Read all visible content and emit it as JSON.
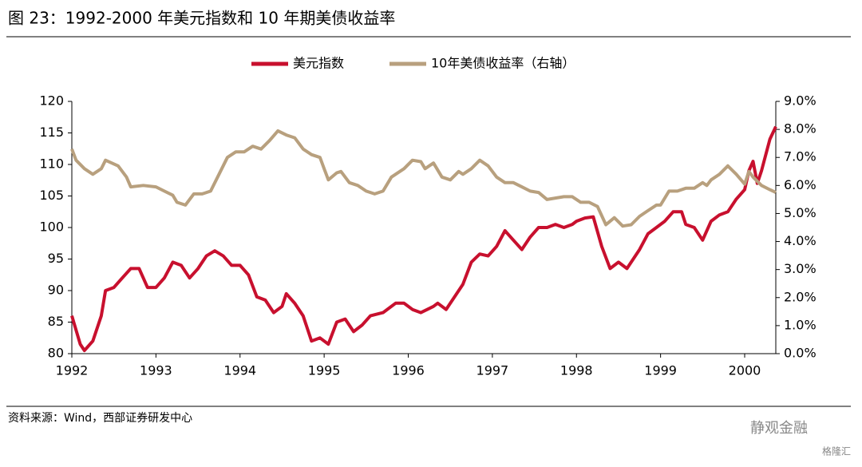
{
  "chart_data": {
    "type": "line",
    "title": "图 23：1992-2000 年美元指数和 10 年期美债收益率",
    "source": "资料来源：Wind，西部证券研发中心",
    "watermark": [
      "静观金融",
      "格隆汇"
    ],
    "xlim": [
      1992,
      2000.37
    ],
    "xticks": [
      1992,
      1993,
      1994,
      1995,
      1996,
      1997,
      1998,
      1999,
      2000
    ],
    "ylim": [
      80,
      120
    ],
    "yticks": [
      80,
      85,
      90,
      95,
      100,
      105,
      110,
      115,
      120
    ],
    "y2lim": [
      0,
      9
    ],
    "y2ticks": [
      {
        "value": 0,
        "label": "0.0%"
      },
      {
        "value": 1,
        "label": "1.0%"
      },
      {
        "value": 2,
        "label": "2.0%"
      },
      {
        "value": 3,
        "label": "3.0%"
      },
      {
        "value": 4,
        "label": "4.0%"
      },
      {
        "value": 5,
        "label": "5.0%"
      },
      {
        "value": 6,
        "label": "6.0%"
      },
      {
        "value": 7,
        "label": "7.0%"
      },
      {
        "value": 8,
        "label": "8.0%"
      },
      {
        "value": 9,
        "label": "9.0%"
      }
    ],
    "series": [
      {
        "name": "美元指数",
        "color": "#c8102e",
        "axis": "y",
        "x": [
          1992.0,
          1992.1,
          1992.15,
          1992.25,
          1992.35,
          1992.4,
          1992.5,
          1992.6,
          1992.7,
          1992.8,
          1992.9,
          1993.0,
          1993.1,
          1993.2,
          1993.3,
          1993.4,
          1993.5,
          1993.6,
          1993.7,
          1993.8,
          1993.9,
          1994.0,
          1994.1,
          1994.2,
          1994.3,
          1994.4,
          1994.5,
          1994.55,
          1994.65,
          1994.75,
          1994.85,
          1994.95,
          1995.05,
          1995.15,
          1995.25,
          1995.35,
          1995.45,
          1995.55,
          1995.7,
          1995.85,
          1995.95,
          1996.05,
          1996.15,
          1996.3,
          1996.35,
          1996.45,
          1996.55,
          1996.65,
          1996.75,
          1996.85,
          1996.95,
          1997.05,
          1997.15,
          1997.25,
          1997.35,
          1997.45,
          1997.55,
          1997.65,
          1997.75,
          1997.85,
          1997.95,
          1998.0,
          1998.1,
          1998.2,
          1998.3,
          1998.4,
          1998.5,
          1998.6,
          1998.75,
          1998.85,
          1998.95,
          1999.05,
          1999.15,
          1999.25,
          1999.3,
          1999.4,
          1999.5,
          1999.6,
          1999.7,
          1999.8,
          1999.9,
          2000.0,
          2000.05,
          2000.1,
          2000.15,
          2000.2,
          2000.3,
          2000.37
        ],
        "values": [
          86,
          81.5,
          80.5,
          82,
          86,
          90,
          90.5,
          92,
          93.5,
          93.5,
          90.5,
          90.5,
          92,
          94.5,
          94,
          92,
          93.5,
          95.5,
          96.3,
          95.5,
          94,
          94,
          92.5,
          89,
          88.5,
          86.5,
          87.5,
          89.5,
          88,
          86,
          82,
          82.5,
          81.5,
          85,
          85.5,
          83.5,
          84.5,
          86,
          86.5,
          88,
          88,
          87,
          86.5,
          87.5,
          88,
          87,
          89,
          91,
          94.5,
          95.8,
          95.5,
          97,
          99.5,
          98,
          96.5,
          98.5,
          100,
          100,
          100.5,
          100,
          100.5,
          101,
          101.5,
          101.7,
          97,
          93.5,
          94.5,
          93.5,
          96.5,
          99,
          100,
          101,
          102.5,
          102.5,
          100.5,
          100,
          98,
          101,
          102,
          102.5,
          104.5,
          106,
          109,
          110.5,
          107,
          109,
          114,
          116
        ]
      },
      {
        "name": "10年美债收益率（右轴）",
        "color": "#b8a07e",
        "axis": "y2",
        "x": [
          1992.0,
          1992.05,
          1992.15,
          1992.25,
          1992.35,
          1992.4,
          1992.55,
          1992.65,
          1992.7,
          1992.85,
          1993.0,
          1993.1,
          1993.2,
          1993.25,
          1993.35,
          1993.45,
          1993.55,
          1993.65,
          1993.75,
          1993.85,
          1993.95,
          1994.05,
          1994.15,
          1994.25,
          1994.35,
          1994.45,
          1994.55,
          1994.65,
          1994.75,
          1994.85,
          1994.95,
          1995.0,
          1995.05,
          1995.15,
          1995.2,
          1995.3,
          1995.4,
          1995.5,
          1995.6,
          1995.7,
          1995.8,
          1995.95,
          1996.05,
          1996.15,
          1996.2,
          1996.3,
          1996.4,
          1996.5,
          1996.6,
          1996.65,
          1996.75,
          1996.85,
          1996.95,
          1997.05,
          1997.15,
          1997.25,
          1997.35,
          1997.45,
          1997.55,
          1997.65,
          1997.75,
          1997.85,
          1997.95,
          1998.05,
          1998.15,
          1998.25,
          1998.35,
          1998.45,
          1998.55,
          1998.65,
          1998.75,
          1998.85,
          1998.95,
          1999.0,
          1999.1,
          1999.2,
          1999.3,
          1999.4,
          1999.5,
          1999.55,
          1999.6,
          1999.7,
          1999.8,
          1999.9,
          2000.0,
          2000.05,
          2000.1,
          2000.15,
          2000.2,
          2000.3,
          2000.37
        ],
        "values": [
          7.3,
          6.9,
          6.6,
          6.4,
          6.6,
          6.9,
          6.7,
          6.3,
          5.95,
          6.0,
          5.95,
          5.8,
          5.65,
          5.4,
          5.3,
          5.7,
          5.7,
          5.8,
          6.4,
          7.0,
          7.2,
          7.2,
          7.4,
          7.3,
          7.6,
          7.95,
          7.8,
          7.7,
          7.3,
          7.1,
          7.0,
          6.6,
          6.2,
          6.45,
          6.5,
          6.1,
          6.0,
          5.8,
          5.7,
          5.8,
          6.3,
          6.6,
          6.9,
          6.85,
          6.6,
          6.8,
          6.3,
          6.2,
          6.5,
          6.4,
          6.6,
          6.9,
          6.7,
          6.3,
          6.1,
          6.1,
          5.95,
          5.8,
          5.75,
          5.5,
          5.55,
          5.6,
          5.6,
          5.4,
          5.4,
          5.25,
          4.6,
          4.85,
          4.55,
          4.6,
          4.9,
          5.1,
          5.3,
          5.3,
          5.8,
          5.8,
          5.9,
          5.9,
          6.1,
          6.0,
          6.2,
          6.4,
          6.7,
          6.4,
          6.05,
          6.5,
          6.3,
          6.15,
          6.0,
          5.85,
          5.75
        ]
      }
    ]
  }
}
